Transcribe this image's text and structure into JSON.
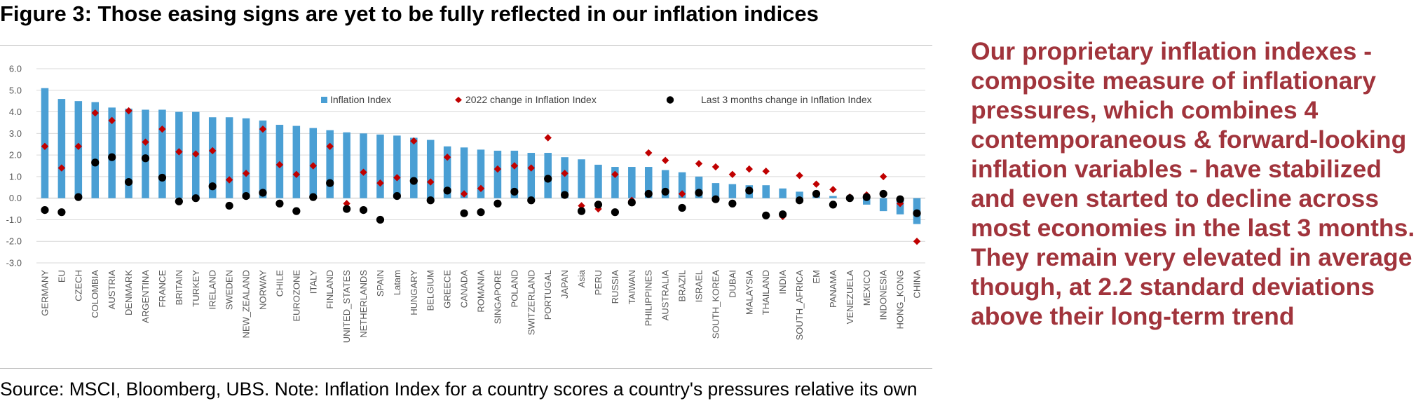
{
  "title": "Figure 3: Those easing signs are yet to be fully reflected in our inflation indices",
  "commentary": "Our proprietary inflation indexes - composite measure of inflationary pressures, which combines 4 contemporaneous & forward-looking inflation variables - have stabilized and even started to decline across most economies in the last 3 months. They remain very elevated in average though, at 2.2 standard deviations above their long-term trend",
  "source": "Source: MSCI, Bloomberg, UBS. Note: Inflation Index for a country scores a country's pressures relative its own",
  "colors": {
    "bar": "#4a9fd4",
    "diamond": "#c00000",
    "dot": "#000000",
    "commentary": "#a1343c",
    "grid": "#d9d9d9"
  },
  "chart_data": {
    "type": "bar",
    "title": "",
    "xlabel": "",
    "ylabel": "",
    "ylim": [
      -3.0,
      6.0
    ],
    "yticks": [
      "6.0",
      "5.0",
      "4.0",
      "3.0",
      "2.0",
      "1.0",
      "0.0",
      "-1.0",
      "-2.0",
      "-3.0"
    ],
    "grid": true,
    "legend_position": "top-right",
    "categories": [
      "GERMANY",
      "EU",
      "CZECH",
      "COLOMBIA",
      "AUSTRIA",
      "DENMARK",
      "ARGENTINA",
      "FRANCE",
      "BRITAIN",
      "TURKEY",
      "IRELAND",
      "SWEDEN",
      "NEW_ZEALAND",
      "NORWAY",
      "CHILE",
      "EUROZONE",
      "ITALY",
      "FINLAND",
      "UNITED_STATES",
      "NETHERLANDS",
      "SPAIN",
      "Latam",
      "HUNGARY",
      "BELGIUM",
      "GREECE",
      "CANADA",
      "ROMANIA",
      "SINGAPORE",
      "POLAND",
      "SWITZERLAND",
      "PORTUGAL",
      "JAPAN",
      "Asia",
      "PERU",
      "RUSSIA",
      "TAIWAN",
      "PHILIPPINES",
      "AUSTRALIA",
      "BRAZIL",
      "ISRAEL",
      "SOUTH_KOREA",
      "DUBAI",
      "MALAYSIA",
      "THAILAND",
      "INDIA",
      "SOUTH_AFRICA",
      "EM",
      "PANAMA",
      "VENEZUELA",
      "MEXICO",
      "INDONESIA",
      "HONG_KONG",
      "CHINA"
    ],
    "series": [
      {
        "name": "Inflation Index",
        "type": "bar",
        "values": [
          5.1,
          4.6,
          4.5,
          4.45,
          4.2,
          4.15,
          4.1,
          4.1,
          4.0,
          4.0,
          3.75,
          3.75,
          3.7,
          3.6,
          3.4,
          3.35,
          3.25,
          3.15,
          3.05,
          3.0,
          2.95,
          2.9,
          2.8,
          2.7,
          2.4,
          2.35,
          2.25,
          2.2,
          2.2,
          2.1,
          2.1,
          1.9,
          1.8,
          1.55,
          1.45,
          1.45,
          1.45,
          1.3,
          1.2,
          1.0,
          0.7,
          0.65,
          0.6,
          0.6,
          0.45,
          0.3,
          0.1,
          0.1,
          0.05,
          -0.3,
          -0.6,
          -0.75,
          -1.2
        ]
      },
      {
        "name": "2022 change in Inflation Index",
        "type": "diamond",
        "values": [
          2.4,
          1.4,
          2.4,
          3.95,
          3.6,
          4.05,
          2.6,
          3.2,
          2.15,
          2.05,
          2.2,
          0.85,
          1.15,
          3.2,
          1.55,
          1.1,
          1.5,
          2.4,
          -0.25,
          1.2,
          0.7,
          0.95,
          2.65,
          0.75,
          1.9,
          0.2,
          0.45,
          1.35,
          1.5,
          1.4,
          2.8,
          1.15,
          -0.35,
          -0.5,
          1.1,
          -0.1,
          2.1,
          1.75,
          0.2,
          1.6,
          1.45,
          1.1,
          1.35,
          1.25,
          -0.85,
          1.05,
          0.65,
          0.4,
          0.05,
          0.15,
          1.0,
          -0.25,
          -2.0
        ]
      },
      {
        "name": "Last 3 months change in Inflation Index",
        "type": "dot",
        "values": [
          -0.55,
          -0.65,
          0.05,
          1.65,
          1.9,
          0.75,
          1.85,
          0.95,
          -0.15,
          0.0,
          0.55,
          -0.35,
          0.1,
          0.25,
          -0.25,
          -0.6,
          0.05,
          0.7,
          -0.5,
          -0.55,
          -1.0,
          0.1,
          0.8,
          -0.1,
          0.35,
          -0.7,
          -0.65,
          -0.25,
          0.3,
          -0.1,
          0.9,
          0.15,
          -0.6,
          -0.3,
          -0.65,
          -0.2,
          0.2,
          0.3,
          -0.45,
          0.25,
          -0.05,
          -0.25,
          0.35,
          -0.8,
          -0.75,
          -0.1,
          0.2,
          -0.3,
          0.0,
          0.05,
          0.2,
          -0.05,
          -0.7
        ]
      }
    ]
  }
}
